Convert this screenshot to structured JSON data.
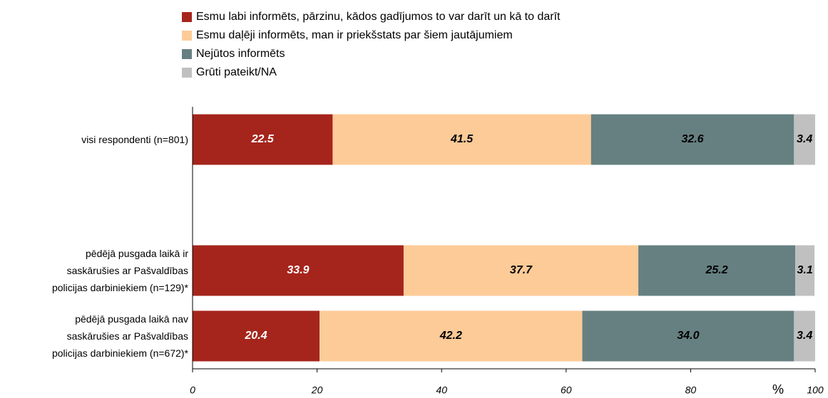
{
  "chart_data": {
    "type": "stacked_barh",
    "categories": [
      "visi respondenti (n=801)",
      null,
      "pēdējā pusgada laikā ir\nsaskārušies ar Pašvaldības\npolicijas darbiniekiem (n=129)*",
      "pēdējā pusgada laikā nav\nsaskārušies ar Pašvaldības\npolicijas darbiniekiem (n=672)*"
    ],
    "series": [
      {
        "name": "Esmu labi informēts, pārzinu, kādos gadījumos to var darīt un kā to darīt",
        "color": "#a5251c",
        "values": [
          22.5,
          null,
          33.9,
          20.4
        ]
      },
      {
        "name": "Esmu daļēji informēts, man ir priekšstats par šiem jautājumiem",
        "color": "#fdcb98",
        "values": [
          41.5,
          null,
          37.7,
          42.2
        ]
      },
      {
        "name": "Nejūtos informēts",
        "color": "#668081",
        "values": [
          32.6,
          null,
          25.2,
          34.0
        ],
        "value_labels": [
          "32.6",
          null,
          "25.2",
          "34.0"
        ]
      },
      {
        "name": "Grūti pateikt/NA",
        "color": "#c0c0c0",
        "values": [
          3.4,
          null,
          3.1,
          3.4
        ]
      }
    ],
    "x_label": "%",
    "xlim": [
      0,
      100
    ],
    "xticks": [
      0,
      20,
      40,
      60,
      80,
      100
    ]
  }
}
